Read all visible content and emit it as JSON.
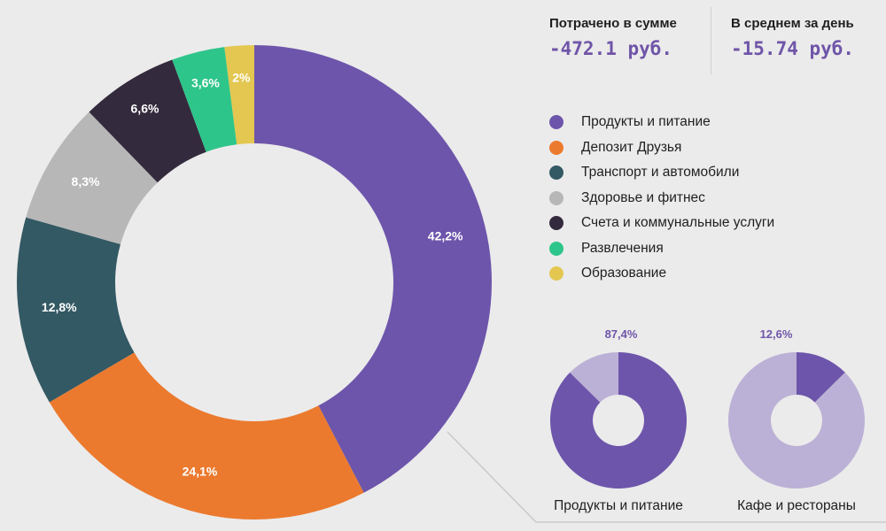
{
  "stats": {
    "spent_label": "Потрачено в сумме",
    "spent_value": "-472.1 руб.",
    "avg_label": "В среднем за день",
    "avg_value": "-15.74 руб.",
    "value_color": "#6f55a8"
  },
  "chart_data": [
    {
      "type": "pie",
      "style": "donut",
      "categories": [
        "Продукты и питание",
        "Депозит Друзья",
        "Транспорт и автомобили",
        "Здоровье и фитнес",
        "Счета и коммунальные услуги",
        "Развлечения",
        "Образование"
      ],
      "values": [
        42.2,
        24.1,
        12.8,
        8.3,
        6.6,
        3.6,
        2
      ],
      "labels": [
        "42,2%",
        "24,1%",
        "12,8%",
        "8,3%",
        "6,6%",
        "3,6%",
        "2%"
      ],
      "colors": [
        "#6d55ab",
        "#eb7a2f",
        "#335964",
        "#b7b7b7",
        "#342a3d",
        "#2ec58a",
        "#e3c750"
      ],
      "legend": "right"
    },
    {
      "type": "pie",
      "style": "donut",
      "title": "Продукты и питание",
      "highlight_label": "87,4%",
      "values": [
        87.4,
        12.6
      ],
      "colors": [
        "#6d55ab",
        "#bbb1d6"
      ]
    },
    {
      "type": "pie",
      "style": "donut",
      "title": "Кафе и рестораны",
      "highlight_label": "12,6%",
      "values": [
        12.6,
        87.4
      ],
      "colors": [
        "#6d55ab",
        "#bbb1d6"
      ]
    }
  ]
}
